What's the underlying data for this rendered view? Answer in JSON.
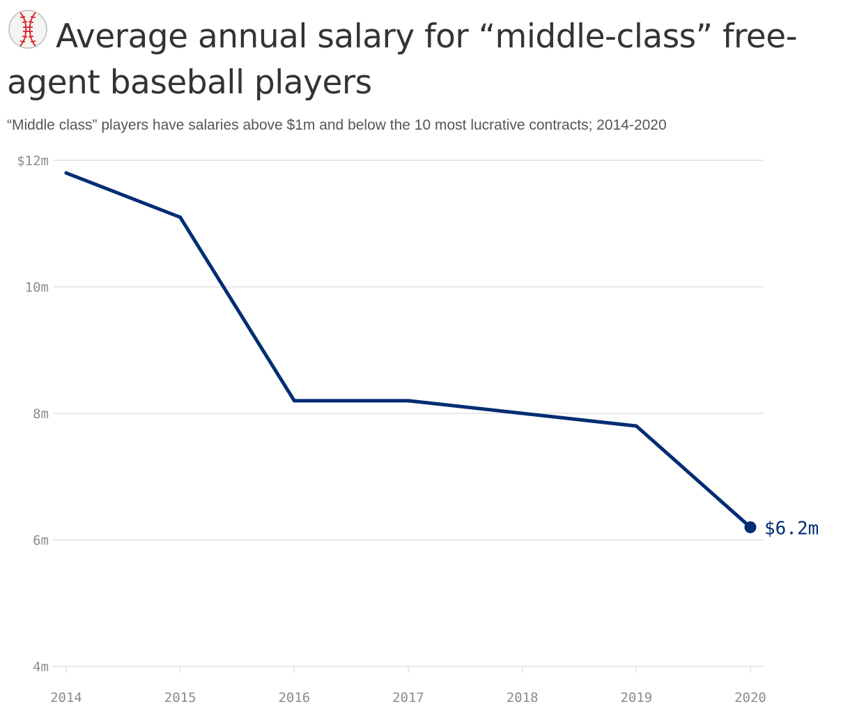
{
  "header": {
    "icon": "baseball-icon",
    "title": "Average annual salary for “middle-class” free-agent baseball players",
    "subtitle": "“Middle class” players have salaries above $1m and below the 10 most lucrative contracts;  2014-2020"
  },
  "colors": {
    "line": "#002d72",
    "grid": "#e0e0e0",
    "tick_text": "#8c8c8c",
    "title": "#333333",
    "subtitle": "#555555"
  },
  "chart_data": {
    "type": "line",
    "x": [
      2014,
      2015,
      2016,
      2017,
      2018,
      2019,
      2020
    ],
    "x_tick_labels": [
      "2014",
      "2015",
      "2016",
      "2017",
      "2018",
      "2019",
      "2020"
    ],
    "y_ticks": [
      4,
      6,
      8,
      10,
      12
    ],
    "y_tick_labels": [
      "4m",
      "6m",
      "8m",
      "10m",
      "$12m"
    ],
    "ylim": [
      4,
      12
    ],
    "grid": true,
    "series": [
      {
        "values": [
          11.8,
          11.1,
          8.2,
          8.2,
          8.0,
          7.8,
          6.2
        ],
        "end_label": "$6.2m"
      }
    ]
  }
}
